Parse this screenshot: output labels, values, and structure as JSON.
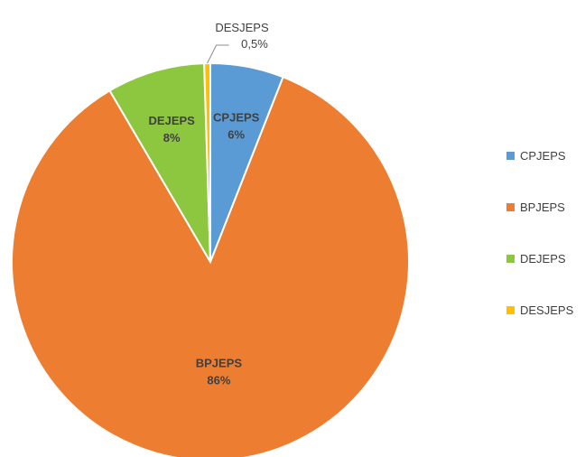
{
  "chart_data": {
    "type": "pie",
    "categories": [
      "CPJEPS",
      "BPJEPS",
      "DEJEPS",
      "DESJEPS"
    ],
    "values": [
      6,
      86,
      8,
      0.5
    ],
    "value_labels": [
      "6%",
      "86%",
      "8%",
      "0,5%"
    ],
    "colors": [
      "#5B9BD5",
      "#ED7D31",
      "#8DC63F",
      "#FFC000"
    ],
    "legend": {
      "placement": "right",
      "entries": [
        "CPJEPS",
        "BPJEPS",
        "DEJEPS",
        "DESJEPS"
      ]
    }
  }
}
